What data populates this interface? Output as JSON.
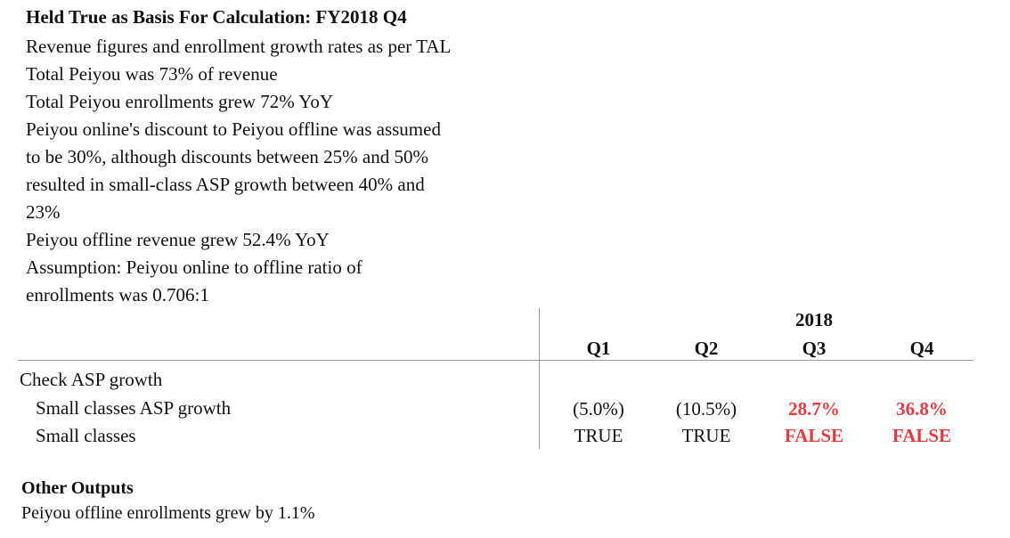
{
  "header": {
    "title": "Held True as Basis For Calculation: FY2018 Q4",
    "lines": [
      "Revenue figures and enrollment growth rates as per TAL",
      "Total Peiyou was 73% of revenue",
      "Total Peiyou enrollments grew 72% YoY",
      "Peiyou online's discount to Peiyou offline was assumed",
      "to be 30%, although discounts between 25% and 50%",
      "resulted in small-class ASP growth between 40% and",
      "23%",
      "Peiyou offline revenue grew 52.4% YoY",
      "Assumption: Peiyou online to offline ratio of",
      "enrollments was 0.706:1"
    ]
  },
  "table": {
    "year_label": "2018",
    "columns": [
      "Q1",
      "Q2",
      "Q3",
      "Q4"
    ],
    "section_label": "Check ASP growth",
    "rows": [
      {
        "label": "Small classes ASP growth",
        "values": [
          "(5.0%)",
          "(10.5%)",
          "28.7%",
          "36.8%"
        ]
      },
      {
        "label": "Small classes",
        "values": [
          "TRUE",
          "TRUE",
          "FALSE",
          "FALSE"
        ]
      }
    ],
    "highlight_color": "#e8393d"
  },
  "other_outputs": {
    "title": "Other Outputs",
    "line": "Peiyou offline enrollments grew by 1.1%"
  }
}
